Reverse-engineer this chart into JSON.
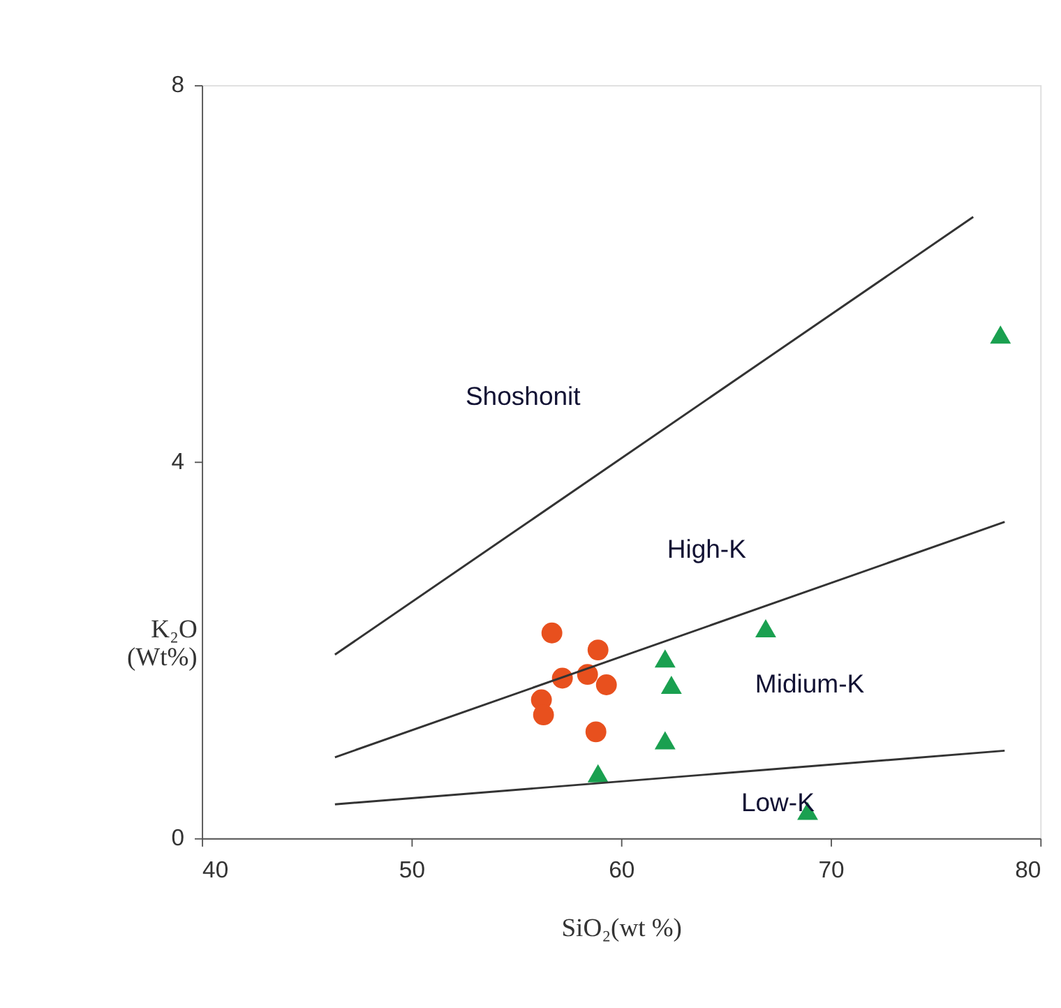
{
  "chart_data": {
    "type": "scatter",
    "xlabel": "SiO₂(wt %)",
    "ylabel": "K₂O\n(Wt%)",
    "xlim": [
      40,
      80
    ],
    "xticks": [
      40,
      50,
      60,
      70,
      80
    ],
    "ylim": [
      0,
      8
    ],
    "yticks": [
      0,
      4,
      8
    ],
    "grid": false,
    "series": [
      {
        "marker": "circle",
        "color": "#e8501e",
        "x": [
          56.7,
          58.9,
          57.2,
          58.4,
          59.3,
          56.2,
          56.3,
          58.8
        ],
        "values": [
          2.18,
          2.0,
          1.7,
          1.74,
          1.63,
          1.47,
          1.31,
          1.13
        ]
      },
      {
        "marker": "triangle",
        "color": "#1aa050",
        "x": [
          62.1,
          62.4,
          66.9,
          62.1,
          58.9,
          68.9,
          78.1
        ],
        "values": [
          1.91,
          1.63,
          2.23,
          1.04,
          0.69,
          0.29,
          5.35
        ]
      },
      {
        "type": "line",
        "marker": "none",
        "color": "#333333",
        "x": [
          46.35,
          76.8
        ],
        "values": [
          1.95,
          6.6
        ]
      },
      {
        "type": "line",
        "marker": "none",
        "color": "#333333",
        "x": [
          46.35,
          78.3
        ],
        "values": [
          0.86,
          3.36
        ]
      },
      {
        "type": "line",
        "marker": "none",
        "color": "#333333",
        "x": [
          46.35,
          78.3
        ],
        "values": [
          0.36,
          0.93
        ]
      }
    ],
    "annotations": [
      "Shoshonit",
      "High-K",
      "Midium-K",
      "Low-K"
    ]
  }
}
